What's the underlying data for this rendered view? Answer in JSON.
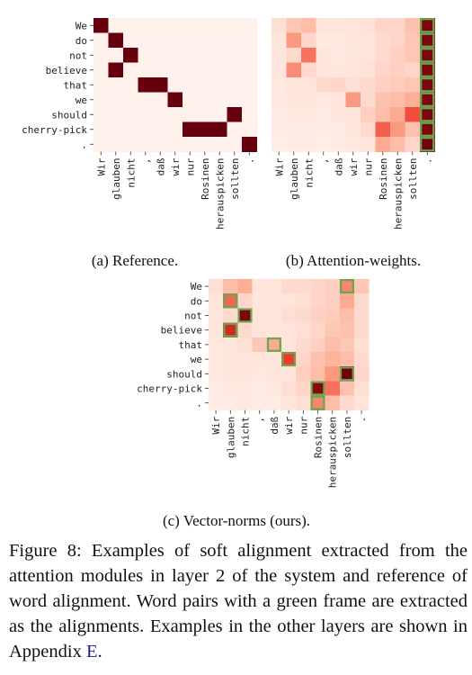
{
  "chart_data": [
    {
      "type": "heatmap",
      "subcaption": "(a) Reference.",
      "rows": [
        "We",
        "do",
        "not",
        "believe",
        "that",
        "we",
        "should",
        "cherry-pick",
        "."
      ],
      "cols": [
        "Wir",
        "glauben",
        "nicht",
        ",",
        "daß",
        "wir",
        "nur",
        "Rosinen",
        "herauspicken",
        "sollten",
        "."
      ],
      "values": [
        [
          1,
          0,
          0,
          0,
          0,
          0,
          0,
          0,
          0,
          0,
          0
        ],
        [
          0,
          1,
          0,
          0,
          0,
          0,
          0,
          0,
          0,
          0,
          0
        ],
        [
          0,
          0,
          1,
          0,
          0,
          0,
          0,
          0,
          0,
          0,
          0
        ],
        [
          0,
          1,
          0,
          0,
          0,
          0,
          0,
          0,
          0,
          0,
          0
        ],
        [
          0,
          0,
          0,
          1,
          1,
          0,
          0,
          0,
          0,
          0,
          0
        ],
        [
          0,
          0,
          0,
          0,
          0,
          1,
          0,
          0,
          0,
          0,
          0
        ],
        [
          0,
          0,
          0,
          0,
          0,
          0,
          0,
          0,
          0,
          1,
          0
        ],
        [
          0,
          0,
          0,
          0,
          0,
          0,
          1,
          1,
          1,
          0,
          0
        ],
        [
          0,
          0,
          0,
          0,
          0,
          0,
          0,
          0,
          0,
          0,
          1
        ]
      ],
      "alignments": []
    },
    {
      "type": "heatmap",
      "subcaption": "(b) Attention-weights.",
      "rows": [
        "We",
        "do",
        "not",
        "believe",
        "that",
        "we",
        "should",
        "cherry-pick",
        "."
      ],
      "cols": [
        "Wir",
        "glauben",
        "nicht",
        ",",
        "daß",
        "wir",
        "nur",
        "Rosinen",
        "herauspicken",
        "sollten",
        "."
      ],
      "values": [
        [
          0.08,
          0.18,
          0.22,
          0.05,
          0.05,
          0.06,
          0.07,
          0.12,
          0.12,
          0.2,
          0.95
        ],
        [
          0.05,
          0.35,
          0.12,
          0.04,
          0.04,
          0.05,
          0.06,
          0.1,
          0.12,
          0.18,
          0.95
        ],
        [
          0.05,
          0.1,
          0.45,
          0.05,
          0.04,
          0.05,
          0.06,
          0.1,
          0.14,
          0.18,
          0.95
        ],
        [
          0.05,
          0.38,
          0.1,
          0.06,
          0.05,
          0.06,
          0.07,
          0.12,
          0.14,
          0.12,
          0.95
        ],
        [
          0.04,
          0.06,
          0.06,
          0.1,
          0.12,
          0.08,
          0.1,
          0.14,
          0.16,
          0.18,
          0.95
        ],
        [
          0.04,
          0.05,
          0.05,
          0.04,
          0.06,
          0.35,
          0.1,
          0.2,
          0.22,
          0.28,
          0.95
        ],
        [
          0.03,
          0.04,
          0.04,
          0.03,
          0.05,
          0.06,
          0.15,
          0.22,
          0.3,
          0.55,
          0.95
        ],
        [
          0.03,
          0.03,
          0.03,
          0.03,
          0.03,
          0.05,
          0.1,
          0.5,
          0.35,
          0.2,
          0.95
        ],
        [
          0.02,
          0.03,
          0.03,
          0.02,
          0.03,
          0.04,
          0.06,
          0.3,
          0.22,
          0.12,
          0.98
        ]
      ],
      "alignments": [
        [
          0,
          10
        ],
        [
          1,
          10
        ],
        [
          2,
          10
        ],
        [
          3,
          10
        ],
        [
          4,
          10
        ],
        [
          5,
          10
        ],
        [
          6,
          10
        ],
        [
          7,
          10
        ],
        [
          8,
          10
        ]
      ]
    },
    {
      "type": "heatmap",
      "subcaption": "(c) Vector-norms (ours).",
      "rows": [
        "We",
        "do",
        "not",
        "believe",
        "that",
        "we",
        "should",
        "cherry-pick",
        "."
      ],
      "cols": [
        "Wir",
        "glauben",
        "nicht",
        ",",
        "daß",
        "wir",
        "nur",
        "Rosinen",
        "herauspicken",
        "sollten",
        "."
      ],
      "values": [
        [
          0.08,
          0.22,
          0.28,
          0.06,
          0.06,
          0.1,
          0.1,
          0.12,
          0.14,
          0.4,
          0.18
        ],
        [
          0.06,
          0.48,
          0.12,
          0.05,
          0.05,
          0.06,
          0.08,
          0.12,
          0.14,
          0.3,
          0.1
        ],
        [
          0.05,
          0.1,
          0.95,
          0.06,
          0.05,
          0.08,
          0.1,
          0.14,
          0.16,
          0.22,
          0.1
        ],
        [
          0.05,
          0.7,
          0.1,
          0.06,
          0.05,
          0.06,
          0.08,
          0.12,
          0.18,
          0.2,
          0.1
        ],
        [
          0.04,
          0.05,
          0.08,
          0.18,
          0.3,
          0.06,
          0.1,
          0.14,
          0.22,
          0.18,
          0.08
        ],
        [
          0.04,
          0.05,
          0.06,
          0.05,
          0.06,
          0.6,
          0.12,
          0.2,
          0.26,
          0.22,
          0.1
        ],
        [
          0.04,
          0.06,
          0.06,
          0.04,
          0.05,
          0.06,
          0.15,
          0.22,
          0.35,
          0.98,
          0.12
        ],
        [
          0.03,
          0.04,
          0.04,
          0.03,
          0.04,
          0.08,
          0.12,
          0.92,
          0.45,
          0.2,
          0.08
        ],
        [
          0.03,
          0.03,
          0.04,
          0.03,
          0.03,
          0.05,
          0.08,
          0.4,
          0.22,
          0.1,
          0.06
        ]
      ],
      "alignments": [
        [
          0,
          9
        ],
        [
          1,
          1
        ],
        [
          2,
          2
        ],
        [
          3,
          1
        ],
        [
          4,
          4
        ],
        [
          5,
          5
        ],
        [
          6,
          9
        ],
        [
          7,
          7
        ],
        [
          8,
          7
        ]
      ]
    }
  ],
  "caption": {
    "text": "Figure 8: Examples of soft alignment extracted from the attention modules in layer 2 of the system and reference of word alignment. Word pairs with a green frame are extracted as the alignments. Examples in the other layers are shown in Appendix ",
    "link": "E",
    "end": "."
  }
}
